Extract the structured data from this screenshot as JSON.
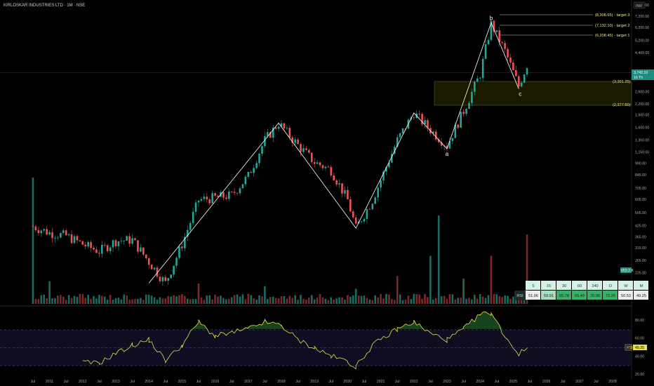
{
  "header": {
    "title": "KIRLOSKAR INDUSTRIES LTD · 1M · NSE",
    "currency": "INR"
  },
  "tags": {
    "last_price": "3,742.10",
    "countdown": "16 Th",
    "volume": "653.2 K",
    "rsi_name": "RSI",
    "rsi_value": "49.25"
  },
  "annotations": {
    "target3": "(8,308.65) - target 3",
    "target2": "(7,132.10) - target 2",
    "target1": "(6,208.45) - target 1",
    "zone_top": "(3,301.25)",
    "zone_bottom": "(2,377.60)",
    "wave_a": "a",
    "wave_b": "b",
    "wave_c": "c"
  },
  "rsi_table": {
    "headers": [
      "5",
      "15",
      "30",
      "60",
      "240",
      "D",
      "W",
      "M"
    ],
    "row_label": "RSI",
    "values": [
      "51.06",
      "59.91",
      "65.78",
      "65.49",
      "70.06",
      "72.26",
      "50.53",
      "49.25"
    ]
  },
  "colors": {
    "up": "#26a69a",
    "down": "#ef5350",
    "rsi": "#e8e04a",
    "annotation": "#f0e68c"
  },
  "chart_data": {
    "type": "candlestick",
    "title": "KIRLOSKAR INDUSTRIES LTD · 1M · NSE",
    "scale": "log",
    "y_ticks": [
      "8,400.00",
      "7,200.00",
      "6,200.00",
      "5,200.00",
      "4,400.00",
      "3,742.10",
      "3,200.00",
      "2,600.00",
      "2,200.00",
      "1,900.00",
      "1,600.00",
      "1,350.00",
      "1,150.00",
      "990.00",
      "845.00",
      "705.00",
      "605.00",
      "505.00",
      "425.00",
      "365.00",
      "315.00",
      "265.00",
      "225.00",
      "195.00",
      "165.00"
    ],
    "x_ticks": [
      "Jul",
      "2011",
      "Jul",
      "2012",
      "Jul",
      "2013",
      "Jul",
      "2014",
      "Jul",
      "2015",
      "Jul",
      "2016",
      "Jul",
      "2017",
      "Jul",
      "2018",
      "Jul",
      "2019",
      "Jul",
      "2020",
      "Jul",
      "2021",
      "Jul",
      "2022",
      "Jul",
      "2023",
      "Jul",
      "2024",
      "Jul",
      "2025",
      "Jul",
      "2026",
      "Jul",
      "2027",
      "Jul",
      "2028"
    ],
    "price_path": [
      {
        "date": "2010-07",
        "close": 420
      },
      {
        "date": "2011-01",
        "close": 385
      },
      {
        "date": "2011-07",
        "close": 370
      },
      {
        "date": "2012-01",
        "close": 330
      },
      {
        "date": "2012-07",
        "close": 300
      },
      {
        "date": "2013-01",
        "close": 345
      },
      {
        "date": "2013-07",
        "close": 350
      },
      {
        "date": "2014-01",
        "close": 260
      },
      {
        "date": "2014-07",
        "close": 195
      },
      {
        "date": "2015-01",
        "close": 330
      },
      {
        "date": "2015-07",
        "close": 600
      },
      {
        "date": "2016-01",
        "close": 620
      },
      {
        "date": "2016-07",
        "close": 640
      },
      {
        "date": "2017-01",
        "close": 830
      },
      {
        "date": "2017-07",
        "close": 1350
      },
      {
        "date": "2017-12",
        "close": 1700
      },
      {
        "date": "2018-07",
        "close": 1260
      },
      {
        "date": "2019-01",
        "close": 1000
      },
      {
        "date": "2019-07",
        "close": 900
      },
      {
        "date": "2020-01",
        "close": 600
      },
      {
        "date": "2020-04",
        "close": 410
      },
      {
        "date": "2020-10",
        "close": 600
      },
      {
        "date": "2021-07",
        "close": 1350
      },
      {
        "date": "2022-01",
        "close": 1950
      },
      {
        "date": "2022-07",
        "close": 1550
      },
      {
        "date": "2023-01",
        "close": 1250
      },
      {
        "date": "2023-07",
        "close": 2000
      },
      {
        "date": "2024-01",
        "close": 3300
      },
      {
        "date": "2024-05",
        "close": 6500
      },
      {
        "date": "2024-10",
        "close": 4500
      },
      {
        "date": "2025-03",
        "close": 2800
      },
      {
        "date": "2025-06",
        "close": 3742.1
      }
    ],
    "wave_points": [
      {
        "label": "",
        "date": "2014-01",
        "price": 195
      },
      {
        "label": "",
        "date": "2017-12",
        "price": 1700
      },
      {
        "label": "",
        "date": "2020-04",
        "price": 410
      },
      {
        "label": "",
        "date": "2022-01",
        "price": 1950
      },
      {
        "label": "a",
        "date": "2023-01",
        "price": 1200
      },
      {
        "label": "b",
        "date": "2024-05",
        "price": 6600
      },
      {
        "label": "c",
        "date": "2025-03",
        "price": 2700
      }
    ],
    "targets": [
      {
        "label": "target 3",
        "price": 8308.65
      },
      {
        "label": "target 2",
        "price": 7132.1
      },
      {
        "label": "target 1",
        "price": 6208.45
      }
    ],
    "zone": {
      "top": 3301.25,
      "bottom": 2377.6
    },
    "rsi": {
      "ylim": [
        20,
        100
      ],
      "ticks": [
        "80.00",
        "60.00",
        "40.00",
        "20.00"
      ],
      "bands": [
        70,
        50,
        30
      ],
      "last": 49.25,
      "path": [
        {
          "date": "2012-01",
          "v": 33
        },
        {
          "date": "2012-07",
          "v": 32
        },
        {
          "date": "2013-01",
          "v": 43
        },
        {
          "date": "2013-07",
          "v": 52
        },
        {
          "date": "2014-01",
          "v": 58
        },
        {
          "date": "2014-07",
          "v": 35
        },
        {
          "date": "2015-01",
          "v": 52
        },
        {
          "date": "2015-07",
          "v": 78
        },
        {
          "date": "2016-01",
          "v": 62
        },
        {
          "date": "2016-07",
          "v": 66
        },
        {
          "date": "2017-01",
          "v": 70
        },
        {
          "date": "2017-07",
          "v": 78
        },
        {
          "date": "2018-01",
          "v": 74
        },
        {
          "date": "2018-07",
          "v": 58
        },
        {
          "date": "2019-01",
          "v": 49
        },
        {
          "date": "2019-07",
          "v": 40
        },
        {
          "date": "2020-01",
          "v": 34
        },
        {
          "date": "2020-04",
          "v": 28
        },
        {
          "date": "2020-10",
          "v": 52
        },
        {
          "date": "2021-07",
          "v": 70
        },
        {
          "date": "2022-01",
          "v": 78
        },
        {
          "date": "2022-07",
          "v": 65
        },
        {
          "date": "2023-01",
          "v": 58
        },
        {
          "date": "2023-07",
          "v": 70
        },
        {
          "date": "2024-01",
          "v": 86
        },
        {
          "date": "2024-05",
          "v": 88
        },
        {
          "date": "2024-10",
          "v": 62
        },
        {
          "date": "2025-03",
          "v": 42
        },
        {
          "date": "2025-06",
          "v": 49.25
        }
      ]
    },
    "volume": {
      "last_label": "653.2 K",
      "spikes": [
        {
          "date": "2010-07",
          "v": 1.0
        },
        {
          "date": "2011-01",
          "v": 0.18
        },
        {
          "date": "2015-07",
          "v": 0.16
        },
        {
          "date": "2017-07",
          "v": 0.14
        },
        {
          "date": "2020-04",
          "v": 0.12
        },
        {
          "date": "2021-07",
          "v": 0.22
        },
        {
          "date": "2022-07",
          "v": 0.38
        },
        {
          "date": "2022-10",
          "v": 0.7
        },
        {
          "date": "2023-07",
          "v": 0.2
        },
        {
          "date": "2024-05",
          "v": 0.38
        },
        {
          "date": "2025-06",
          "v": 0.55
        }
      ]
    }
  }
}
